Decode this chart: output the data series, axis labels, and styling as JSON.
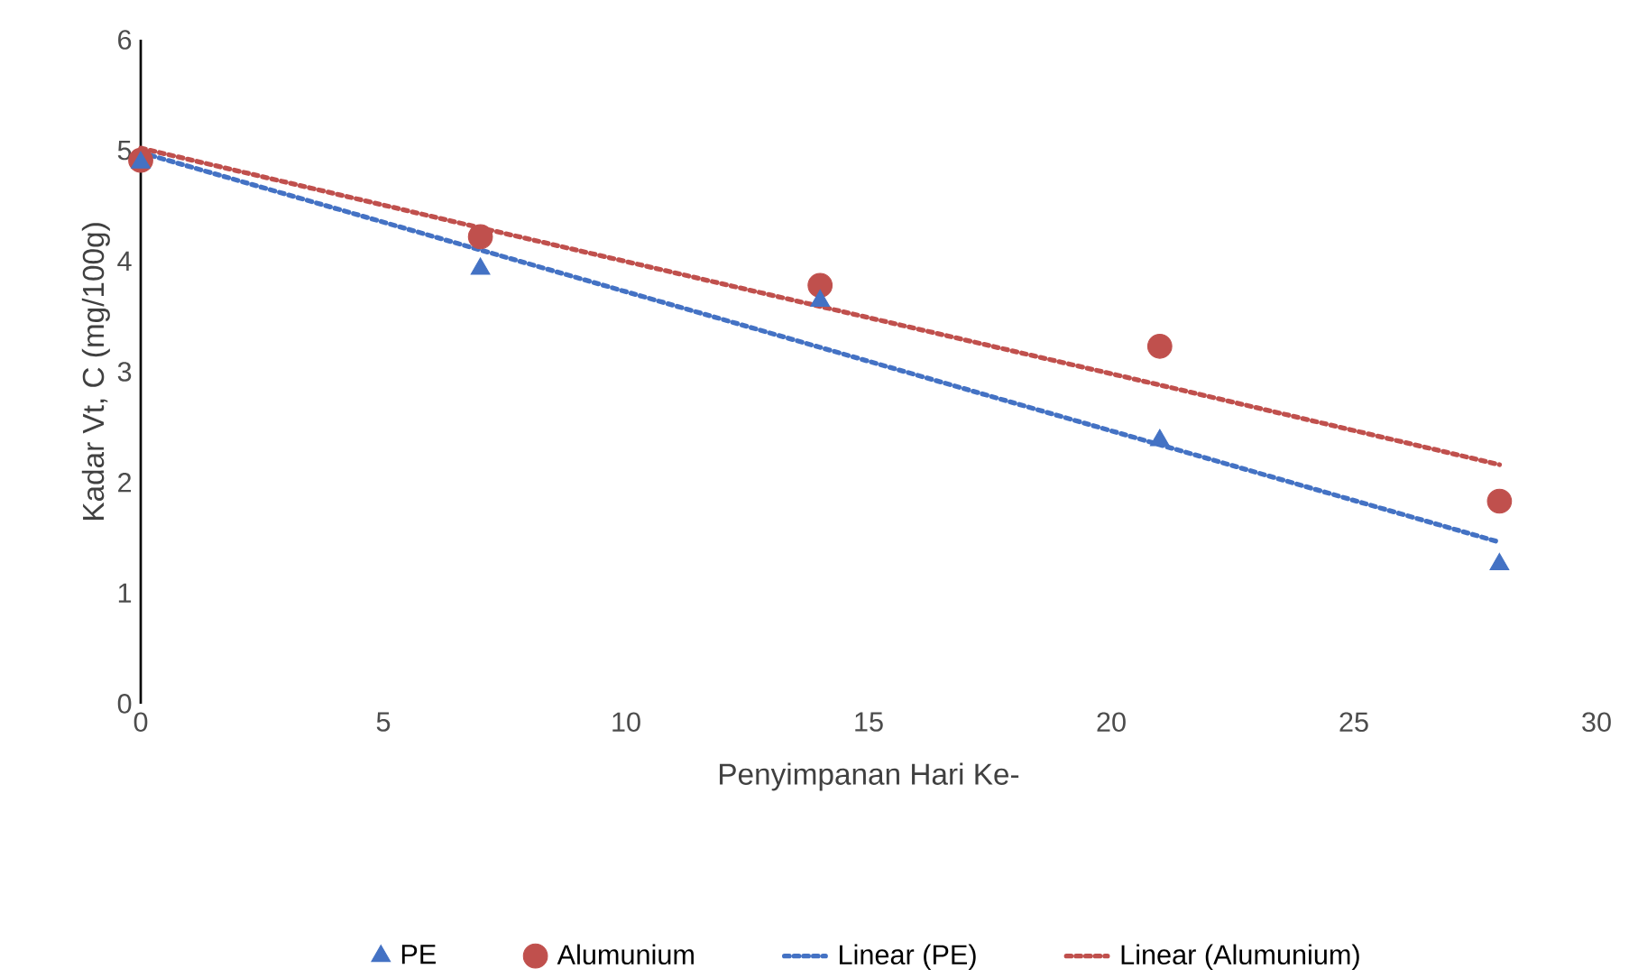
{
  "chart_data": {
    "type": "scatter",
    "xlabel": "Penyimpanan Hari Ke-",
    "ylabel": "Kadar Vt, C (mg/100g)",
    "xlim": [
      0,
      30
    ],
    "ylim": [
      0,
      6
    ],
    "xticks": [
      0,
      5,
      10,
      15,
      20,
      25,
      30
    ],
    "yticks": [
      0,
      1,
      2,
      3,
      4,
      5,
      6
    ],
    "grid": false,
    "legend": "bottom",
    "x": [
      0,
      7,
      14,
      21,
      28
    ],
    "series": [
      {
        "name": "PE",
        "marker": "triangle",
        "color": "#4472c4",
        "values": [
          4.89,
          3.93,
          3.64,
          2.38,
          1.26
        ]
      },
      {
        "name": "Alumunium",
        "marker": "circle",
        "color": "#c0504d",
        "values": [
          4.91,
          4.22,
          3.78,
          3.23,
          1.83
        ]
      },
      {
        "name": "Linear (PE)",
        "type": "line",
        "line_style": "dotted",
        "marker": "none",
        "color": "#4472c4",
        "values": [
          4.98,
          4.1,
          3.22,
          2.34,
          1.46
        ]
      },
      {
        "name": "Linear (Alumunium)",
        "type": "line",
        "line_style": "dotted",
        "marker": "none",
        "color": "#c0504d",
        "values": [
          5.02,
          4.3,
          3.59,
          2.88,
          2.16
        ]
      }
    ]
  }
}
